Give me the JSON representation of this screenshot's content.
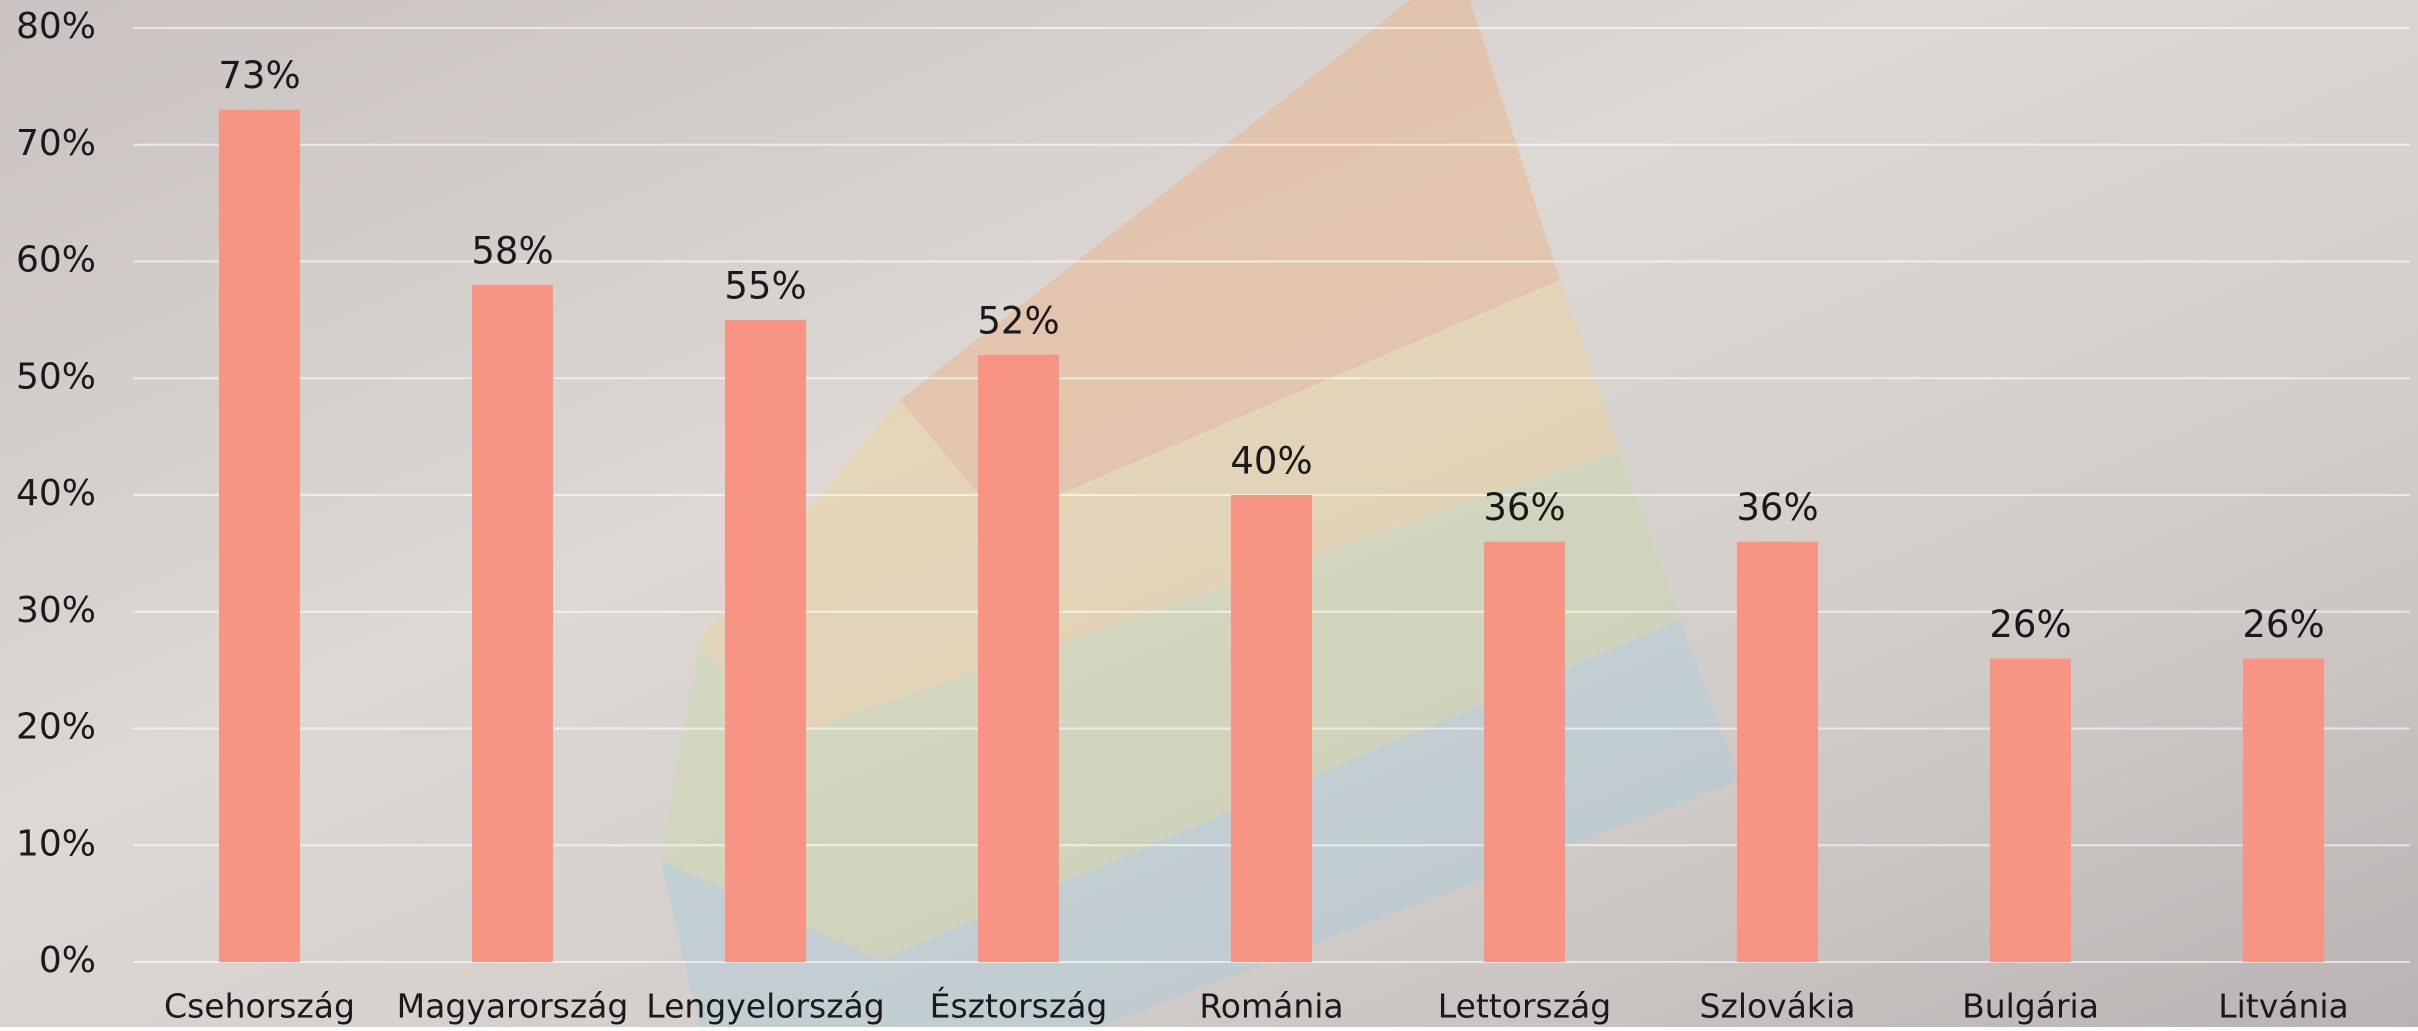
{
  "chart_data": {
    "type": "bar",
    "categories": [
      "Csehország",
      "Magyarország",
      "Lengyelország",
      "Észtország",
      "Románia",
      "Lettország",
      "Szlovákia",
      "Bulgária",
      "Litvánia"
    ],
    "values": [
      73,
      58,
      55,
      52,
      40,
      36,
      36,
      26,
      26
    ],
    "value_labels": [
      "73%",
      "58%",
      "55%",
      "52%",
      "40%",
      "36%",
      "36%",
      "26%",
      "26%"
    ],
    "color": "#f79483",
    "ylim": [
      0,
      80
    ],
    "yticks": [
      {
        "value": 0,
        "label": "0%"
      },
      {
        "value": 10,
        "label": "10%"
      },
      {
        "value": 20,
        "label": "20%"
      },
      {
        "value": 30,
        "label": "30%"
      },
      {
        "value": 40,
        "label": "40%"
      },
      {
        "value": 50,
        "label": "50%"
      },
      {
        "value": 60,
        "label": "60%"
      },
      {
        "value": 70,
        "label": "70%"
      },
      {
        "value": 80,
        "label": "80%"
      }
    ],
    "grid": true
  }
}
